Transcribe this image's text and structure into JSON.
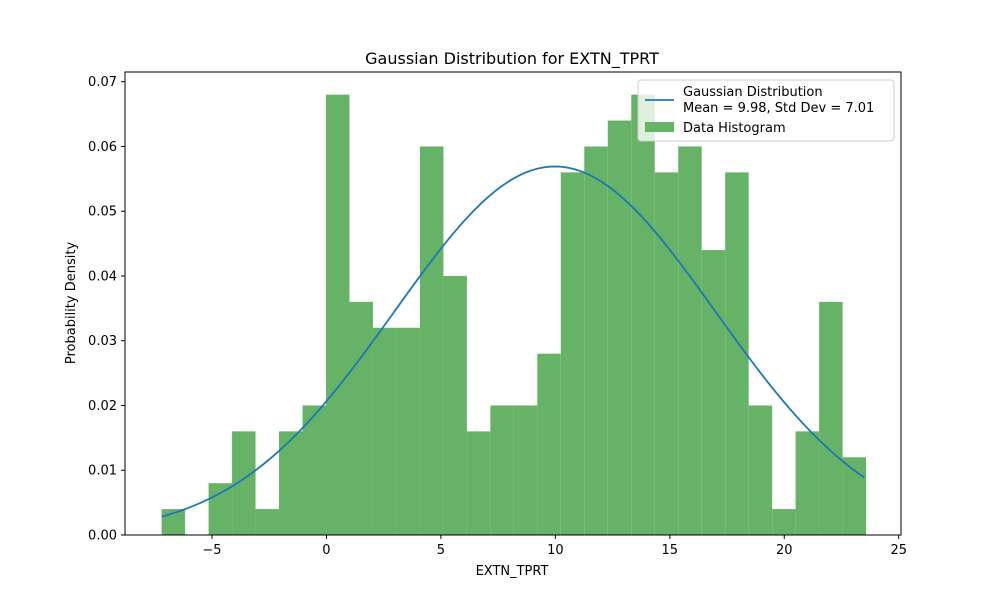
{
  "chart_data": {
    "type": "bar",
    "title": "Gaussian Distribution for EXTN_TPRT",
    "xlabel": "EXTN_TPRT",
    "ylabel": "Probability Density",
    "xlim": [
      -8.8,
      25.1
    ],
    "ylim": [
      0,
      0.0715
    ],
    "x_ticks": [
      -5,
      0,
      5,
      10,
      15,
      20,
      25
    ],
    "x_tick_labels": [
      "−5",
      "0",
      "5",
      "10",
      "15",
      "20",
      "25"
    ],
    "y_ticks": [
      0,
      0.01,
      0.02,
      0.03,
      0.04,
      0.05,
      0.06,
      0.07
    ],
    "y_tick_labels": [
      "0.00",
      "0.01",
      "0.02",
      "0.03",
      "0.04",
      "0.05",
      "0.06",
      "0.07"
    ],
    "histogram": {
      "name": "Data Histogram",
      "color": "#66b266",
      "bin_start": -7.2,
      "bin_width": 1.0258,
      "values": [
        0.004,
        0.0,
        0.008,
        0.016,
        0.004,
        0.016,
        0.02,
        0.068,
        0.036,
        0.032,
        0.032,
        0.06,
        0.04,
        0.016,
        0.02,
        0.02,
        0.028,
        0.056,
        0.06,
        0.064,
        0.068,
        0.056,
        0.06,
        0.044,
        0.056,
        0.02,
        0.004,
        0.016,
        0.036,
        0.012
      ]
    },
    "gaussian": {
      "name": "Gaussian Distribution",
      "mean": 9.98,
      "std": 7.01,
      "x_range": [
        -7.2,
        23.5
      ],
      "color": "#1f77b4"
    },
    "legend": {
      "position": "top-right",
      "entries": [
        {
          "label_line1": "Gaussian Distribution",
          "label_line2": "Mean = 9.98, Std Dev = 7.01",
          "kind": "line"
        },
        {
          "label_line1": "Data Histogram",
          "kind": "patch"
        }
      ]
    }
  }
}
